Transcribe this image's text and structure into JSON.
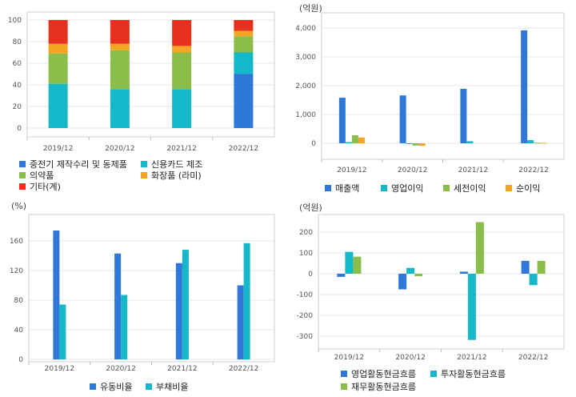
{
  "chart_data": [
    {
      "id": "product-mix",
      "type": "bar",
      "stacked": true,
      "title": "",
      "ylim": [
        0,
        100
      ],
      "yticks": [
        "0",
        "20",
        "40",
        "60",
        "80",
        "100"
      ],
      "categories": [
        "2019/12",
        "2020/12",
        "2021/12",
        "2022/12"
      ],
      "series": [
        {
          "name": "중전기 제작수리 및 동제품",
          "color": "#2f77d8",
          "values": [
            0,
            0,
            0,
            50
          ]
        },
        {
          "name": "신용카드 제조",
          "color": "#14b8c8",
          "values": [
            41,
            36,
            36,
            20
          ]
        },
        {
          "name": "의약품",
          "color": "#8bbd4a",
          "values": [
            28,
            36,
            34,
            15
          ]
        },
        {
          "name": "화장품 (라미)",
          "color": "#f4a623",
          "values": [
            9,
            6,
            6,
            5
          ]
        },
        {
          "name": "기타(계)",
          "color": "#e8301f",
          "values": [
            22,
            22,
            24,
            10
          ]
        }
      ]
    },
    {
      "id": "income",
      "type": "bar",
      "unit": "(억원)",
      "ylim": [
        -300,
        4200
      ],
      "yticks": [
        "0",
        "1,000",
        "2,000",
        "3,000",
        "4,000"
      ],
      "categories": [
        "2019/12",
        "2020/12",
        "2021/12",
        "2022/12"
      ],
      "series": [
        {
          "name": "매출액",
          "color": "#2f77d8",
          "values": [
            1580,
            1660,
            1890,
            3920
          ]
        },
        {
          "name": "영업이익",
          "color": "#14b8c8",
          "values": [
            40,
            -20,
            70,
            110
          ]
        },
        {
          "name": "세전이익",
          "color": "#8bbd4a",
          "values": [
            280,
            -80,
            0,
            20
          ]
        },
        {
          "name": "순이익",
          "color": "#f4a623",
          "values": [
            200,
            -90,
            0,
            15
          ]
        }
      ]
    },
    {
      "id": "ratios",
      "type": "bar",
      "unit": "(%)",
      "ylim": [
        0,
        185
      ],
      "yticks": [
        "0",
        "40",
        "80",
        "120",
        "160"
      ],
      "categories": [
        "2019/12",
        "2020/12",
        "2021/12",
        "2022/12"
      ],
      "series": [
        {
          "name": "유동비율",
          "color": "#2f77d8",
          "values": [
            174,
            143,
            130,
            100
          ]
        },
        {
          "name": "부채비율",
          "color": "#14b8c8",
          "values": [
            74,
            87,
            148,
            157
          ]
        }
      ]
    },
    {
      "id": "cashflow",
      "type": "bar",
      "unit": "(억원)",
      "ylim": [
        -340,
        280
      ],
      "yticks": [
        "-300",
        "-200",
        "-100",
        "0",
        "100",
        "200"
      ],
      "categories": [
        "2019/12",
        "2020/12",
        "2021/12",
        "2022/12"
      ],
      "series": [
        {
          "name": "영업활동현금흐름",
          "color": "#2f77d8",
          "values": [
            -15,
            -75,
            10,
            62
          ]
        },
        {
          "name": "투자활동현금흐름",
          "color": "#14b8c8",
          "values": [
            105,
            28,
            -318,
            -55
          ]
        },
        {
          "name": "재무활동현금흐름",
          "color": "#8bbd4a",
          "values": [
            82,
            -12,
            248,
            62
          ]
        }
      ]
    }
  ]
}
